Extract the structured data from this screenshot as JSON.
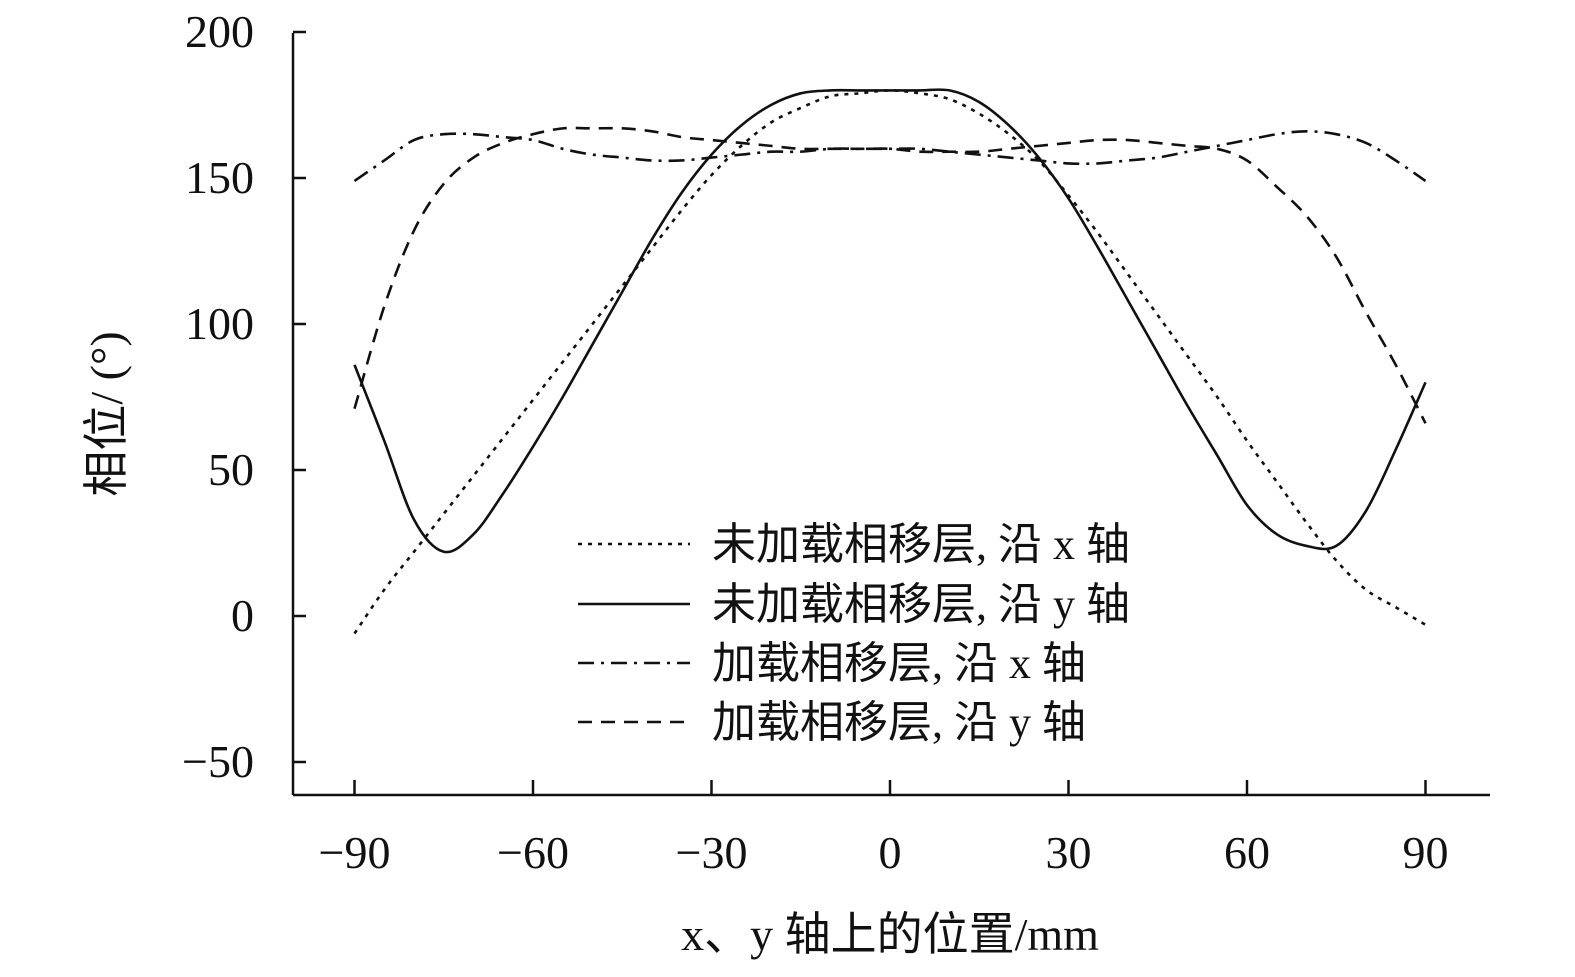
{
  "chart_data": {
    "type": "line",
    "title": "",
    "xlabel": "x、y 轴上的位置/mm",
    "ylabel": "相位/ (°)",
    "xlim": [
      -100,
      100
    ],
    "ylim": [
      -60,
      200
    ],
    "xticks": [
      -90,
      -60,
      -30,
      0,
      30,
      60,
      90
    ],
    "yticks": [
      -50,
      0,
      50,
      100,
      150,
      200
    ],
    "xtick_labels": [
      "−90",
      "−60",
      "−30",
      "0",
      "30",
      "60",
      "90"
    ],
    "ytick_labels": [
      "−50",
      "0",
      "50",
      "100",
      "150",
      "200"
    ],
    "grid": false,
    "legend_position": "bottom-center",
    "x": [
      -90,
      -85,
      -80,
      -75,
      -70,
      -65,
      -60,
      -55,
      -50,
      -45,
      -40,
      -35,
      -30,
      -25,
      -20,
      -15,
      -10,
      -5,
      0,
      5,
      10,
      15,
      20,
      25,
      30,
      35,
      40,
      45,
      50,
      55,
      60,
      65,
      70,
      75,
      80,
      85,
      90
    ],
    "series": [
      {
        "name": "未加载相移层, 沿 x 轴",
        "style": "dotted",
        "values": [
          -6,
          9,
          22,
          35,
          48,
          61,
          74,
          87,
          100,
          113,
          126,
          139,
          151,
          161,
          169,
          174,
          178,
          179,
          180,
          179,
          177,
          172,
          165,
          156,
          144,
          131,
          117,
          103,
          89,
          75,
          60,
          46,
          32,
          19,
          9,
          3,
          -3
        ]
      },
      {
        "name": "未加载相移层, 沿 y 轴",
        "style": "solid",
        "values": [
          86,
          60,
          33,
          22,
          28,
          42,
          58,
          75,
          93,
          111,
          129,
          145,
          158,
          168,
          175,
          179,
          180,
          180,
          180,
          180,
          180,
          176,
          168,
          157,
          143,
          126,
          108,
          90,
          72,
          55,
          38,
          28,
          24,
          24,
          36,
          57,
          80
        ]
      },
      {
        "name": "加载相移层, 沿 x 轴",
        "style": "dash-dot",
        "values": [
          149,
          156,
          163,
          165,
          165,
          164,
          163,
          160,
          158,
          157,
          156,
          156,
          157,
          158,
          159,
          159,
          160,
          160,
          160,
          160,
          159,
          158,
          157,
          156,
          155,
          155,
          156,
          157,
          159,
          161,
          163,
          165,
          166,
          165,
          162,
          156,
          149
        ]
      },
      {
        "name": "加载相移层, 沿 y 轴",
        "style": "dashed",
        "values": [
          71,
          106,
          132,
          148,
          157,
          162,
          165,
          167,
          167,
          167,
          166,
          164,
          163,
          162,
          161,
          160,
          160,
          160,
          160,
          159,
          159,
          159,
          160,
          161,
          162,
          163,
          163,
          162,
          161,
          160,
          156,
          147,
          137,
          123,
          104,
          86,
          66
        ]
      }
    ]
  }
}
